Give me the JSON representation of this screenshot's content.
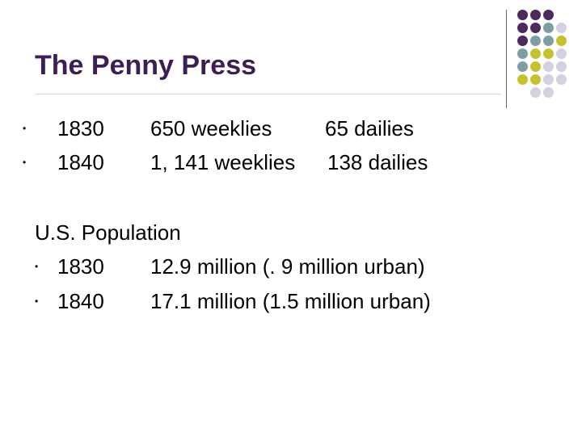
{
  "slide": {
    "title": "The Penny Press"
  },
  "colors": {
    "title": "#3c1e52",
    "accent_purple": "#4b2a5e",
    "accent_teal": "#7f9fa3",
    "accent_olive": "#c2c32f",
    "accent_lavender": "#d4d0e0",
    "rule": "#d8d8d8",
    "vertical_rule": "#6b6b6b"
  },
  "newspapers": {
    "rows": [
      {
        "bullet": "•",
        "year": "1830",
        "weeklies": "650 weeklies",
        "dailies": "65 dailies"
      },
      {
        "bullet": "•",
        "year": "1840",
        "weeklies": "1, 141 weeklies",
        "dailies": "138 dailies"
      }
    ]
  },
  "population": {
    "heading": "U.S. Population",
    "rows": [
      {
        "bullet": "•",
        "year": "1830",
        "value": "12.9 million (. 9 million urban)"
      },
      {
        "bullet": "•",
        "year": "1840",
        "value": "17.1 million (1.5 million urban)"
      }
    ]
  }
}
